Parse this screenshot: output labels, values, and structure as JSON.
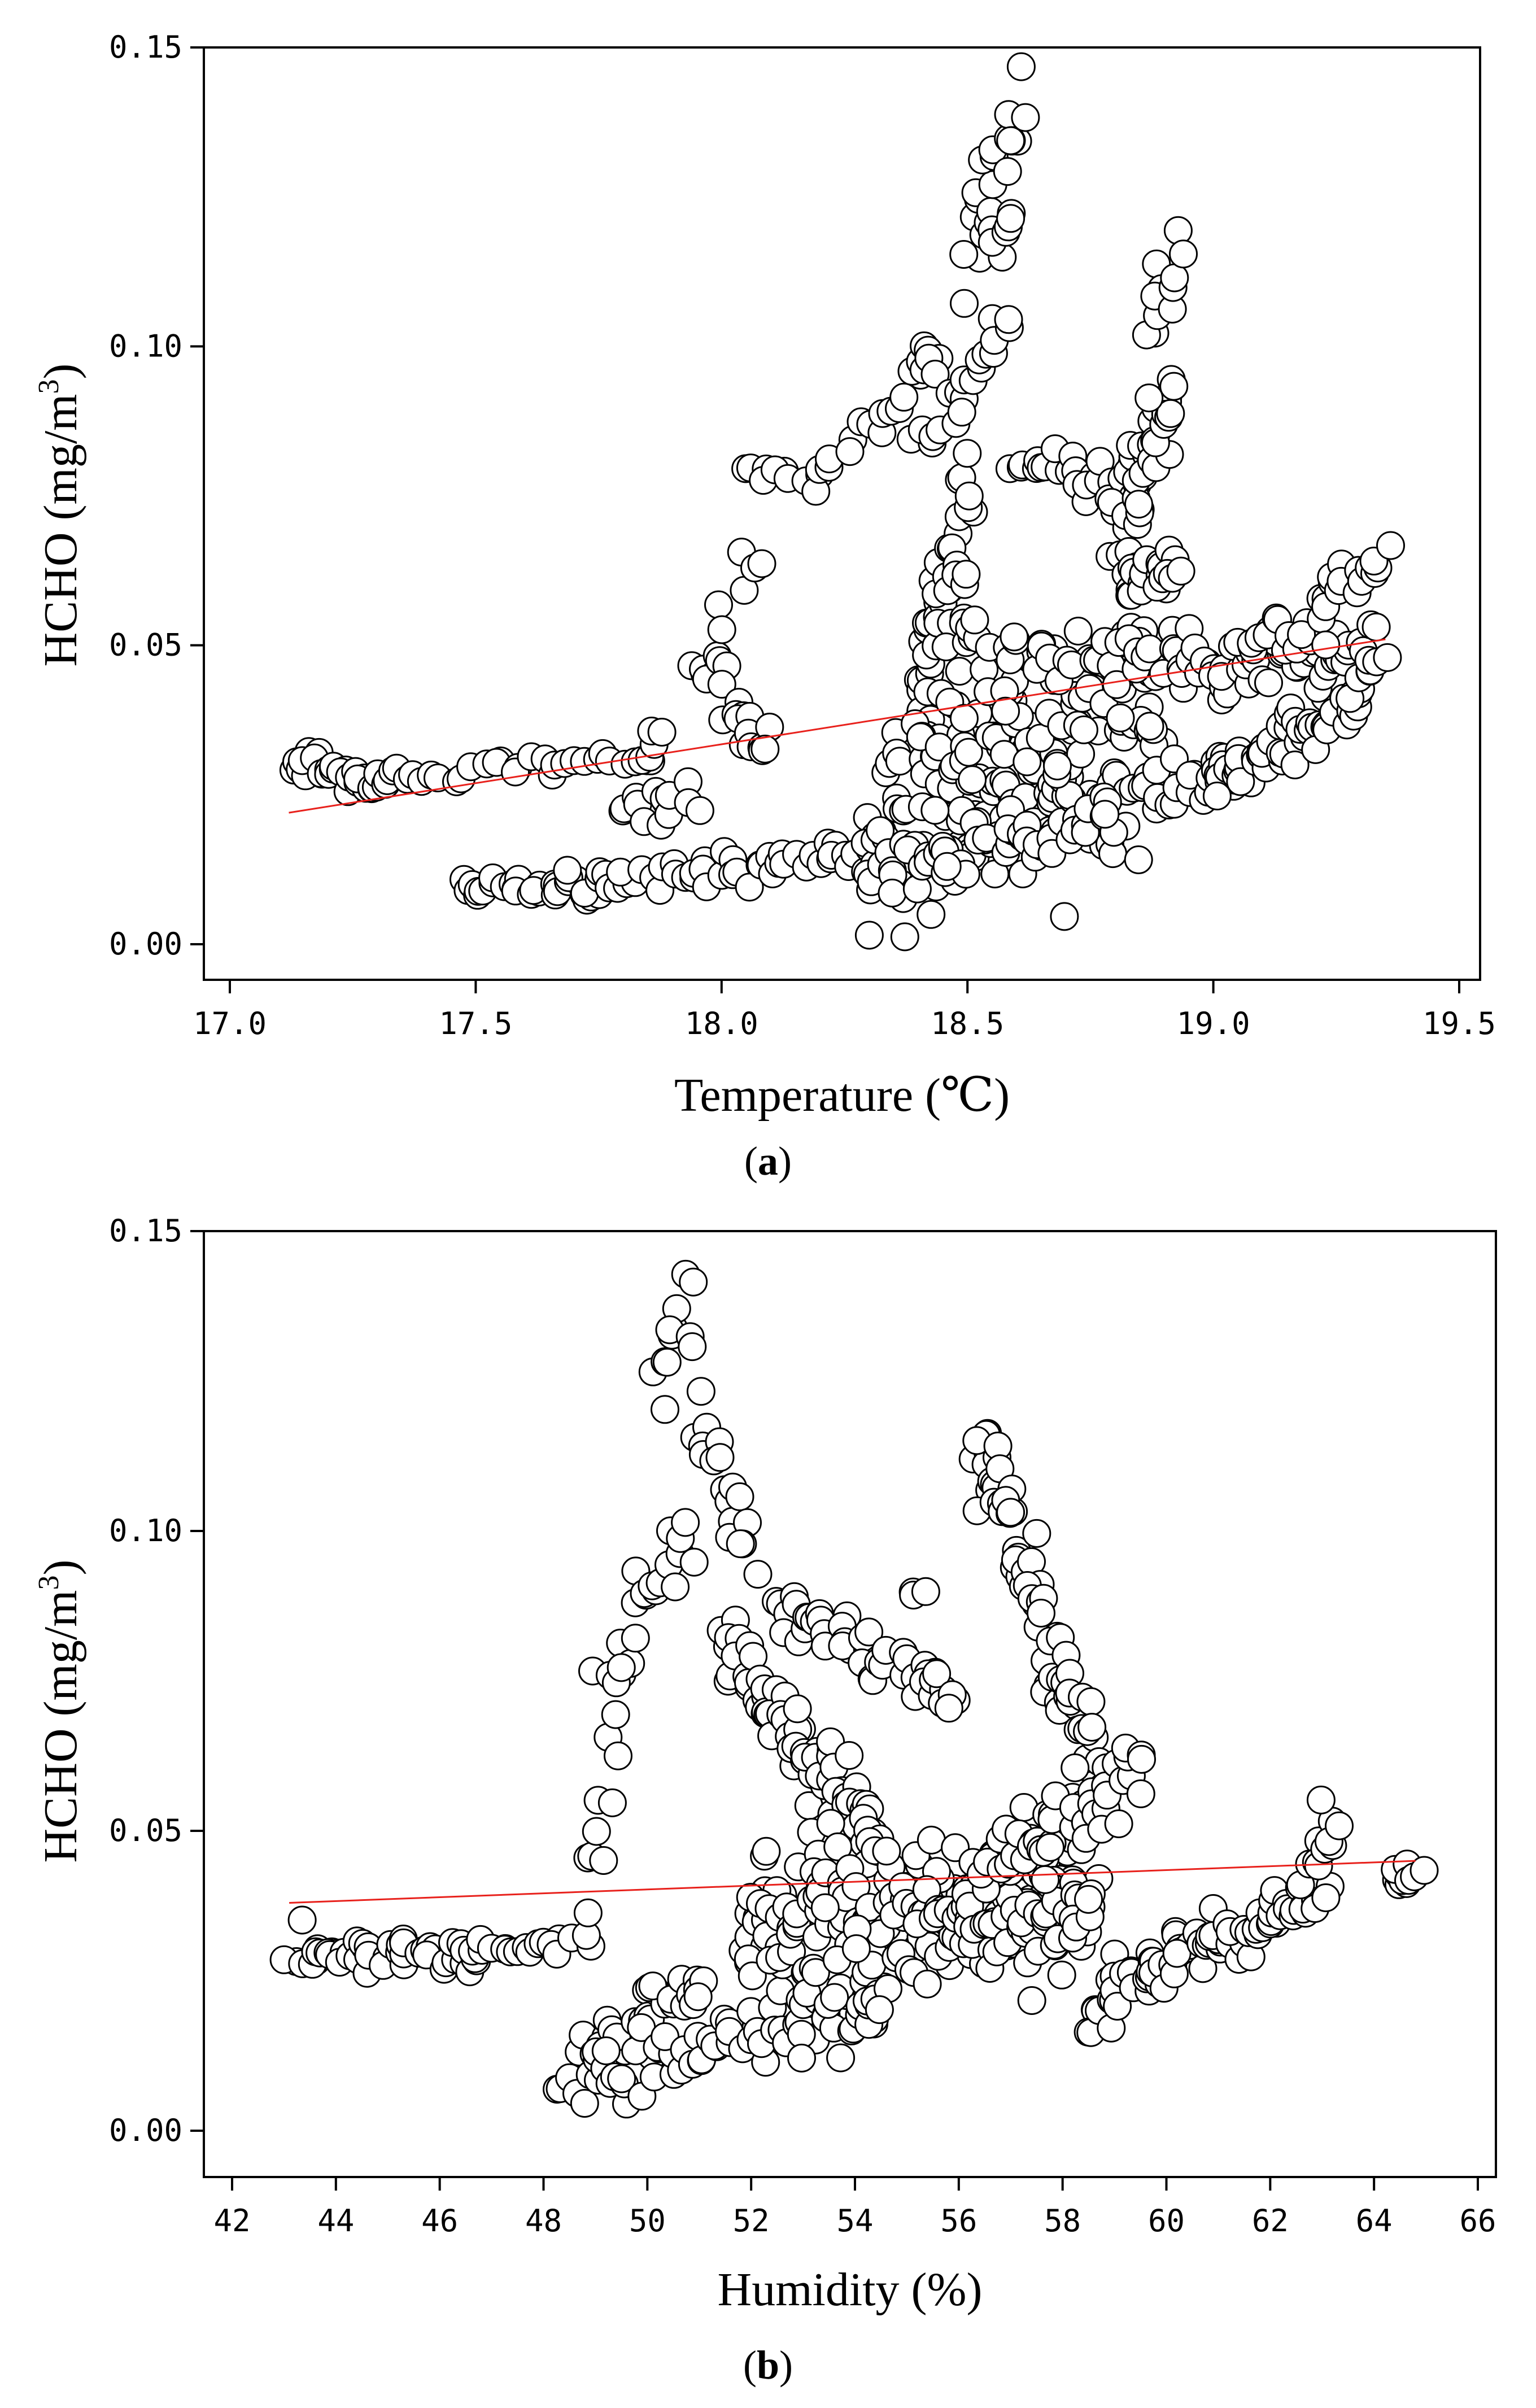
{
  "chart_data": [
    {
      "type": "scatter",
      "caption": "a",
      "xlabel": "Temperature (℃)",
      "ylabel_main": "HCHO (mg/m",
      "ylabel_sup": "3",
      "ylabel_close": ")",
      "xlim": [
        17.0,
        19.5
      ],
      "ylim": [
        0.0,
        0.15
      ],
      "xticks": [
        "17.0",
        "17.5",
        "18.0",
        "18.5",
        "19.0",
        "19.5"
      ],
      "xtick_values": [
        17.0,
        17.5,
        18.0,
        18.5,
        19.0,
        19.5
      ],
      "yticks": [
        "0.00",
        "0.05",
        "0.10",
        "0.15"
      ],
      "ytick_values": [
        0.0,
        0.05,
        0.1,
        0.15
      ],
      "marker": "open-circle",
      "trend_color": "#e8211c",
      "trendline": [
        [
          17.12,
          0.022
        ],
        [
          19.35,
          0.051
        ]
      ],
      "clusters": [
        {
          "from": [
            17.12,
            0.031
          ],
          "to": [
            17.32,
            0.026
          ],
          "n": 30,
          "spread": 0.0015
        },
        {
          "from": [
            17.32,
            0.028
          ],
          "to": [
            17.85,
            0.031
          ],
          "n": 28,
          "spread": 0.001
        },
        {
          "from": [
            17.47,
            0.01
          ],
          "to": [
            17.75,
            0.009
          ],
          "n": 28,
          "spread": 0.001
        },
        {
          "from": [
            17.7,
            0.01
          ],
          "to": [
            18.3,
            0.015
          ],
          "n": 50,
          "spread": 0.002
        },
        {
          "from": [
            17.8,
            0.022
          ],
          "to": [
            17.95,
            0.025
          ],
          "n": 14,
          "spread": 0.002
        },
        {
          "from": [
            17.85,
            0.03
          ],
          "to": [
            17.87,
            0.036
          ],
          "n": 6,
          "spread": 0.001
        },
        {
          "from": [
            17.95,
            0.048
          ],
          "to": [
            18.1,
            0.031
          ],
          "n": 22,
          "spread": 0.003
        },
        {
          "from": [
            18.0,
            0.06
          ],
          "to": [
            18.08,
            0.065
          ],
          "n": 6,
          "spread": 0.002
        },
        {
          "from": [
            18.05,
            0.08
          ],
          "to": [
            18.2,
            0.077
          ],
          "n": 10,
          "spread": 0.001
        },
        {
          "from": [
            18.2,
            0.078
          ],
          "to": [
            18.42,
            0.095
          ],
          "n": 14,
          "spread": 0.002
        },
        {
          "from": [
            18.38,
            0.095
          ],
          "to": [
            18.45,
            0.1
          ],
          "n": 8,
          "spread": 0.002
        },
        {
          "from": [
            18.4,
            0.084
          ],
          "to": [
            18.5,
            0.09
          ],
          "n": 10,
          "spread": 0.002
        },
        {
          "from": [
            18.5,
            0.095
          ],
          "to": [
            18.58,
            0.104
          ],
          "n": 10,
          "spread": 0.002
        },
        {
          "from": [
            18.5,
            0.113
          ],
          "to": [
            18.6,
            0.141
          ],
          "n": 24,
          "spread": 0.003
        },
        {
          "from": [
            18.56,
            0.117
          ],
          "to": [
            18.6,
            0.122
          ],
          "n": 6,
          "spread": 0.002
        },
        {
          "from": [
            18.4,
            0.042
          ],
          "to": [
            18.5,
            0.075
          ],
          "n": 36,
          "spread": 0.004
        },
        {
          "from": [
            18.45,
            0.06
          ],
          "to": [
            18.52,
            0.055
          ],
          "n": 16,
          "spread": 0.004
        },
        {
          "from": [
            18.6,
            0.081
          ],
          "to": [
            18.85,
            0.076
          ],
          "n": 24,
          "spread": 0.002
        },
        {
          "from": [
            18.8,
            0.07
          ],
          "to": [
            18.92,
            0.09
          ],
          "n": 40,
          "spread": 0.004
        },
        {
          "from": [
            18.86,
            0.1
          ],
          "to": [
            18.93,
            0.117
          ],
          "n": 12,
          "spread": 0.003
        },
        {
          "from": [
            18.82,
            0.06
          ],
          "to": [
            18.92,
            0.063
          ],
          "n": 24,
          "spread": 0.002
        },
        {
          "from": [
            18.3,
            0.02
          ],
          "to": [
            18.9,
            0.03
          ],
          "n": 140,
          "spread": 0.008
        },
        {
          "from": [
            18.3,
            0.013
          ],
          "to": [
            18.8,
            0.022
          ],
          "n": 60,
          "spread": 0.003
        },
        {
          "from": [
            18.4,
            0.035
          ],
          "to": [
            18.95,
            0.045
          ],
          "n": 70,
          "spread": 0.006
        },
        {
          "from": [
            18.55,
            0.048
          ],
          "to": [
            18.95,
            0.048
          ],
          "n": 30,
          "spread": 0.003
        },
        {
          "from": [
            18.85,
            0.026
          ],
          "to": [
            19.05,
            0.028
          ],
          "n": 20,
          "spread": 0.002
        },
        {
          "from": [
            19.0,
            0.028
          ],
          "to": [
            19.3,
            0.04
          ],
          "n": 60,
          "spread": 0.002
        },
        {
          "from": [
            18.95,
            0.045
          ],
          "to": [
            19.35,
            0.05
          ],
          "n": 60,
          "spread": 0.003
        },
        {
          "from": [
            19.05,
            0.05
          ],
          "to": [
            19.2,
            0.052
          ],
          "n": 14,
          "spread": 0.002
        },
        {
          "from": [
            19.2,
            0.055
          ],
          "to": [
            19.35,
            0.066
          ],
          "n": 20,
          "spread": 0.003
        }
      ]
    },
    {
      "type": "scatter",
      "caption": "b",
      "xlabel": "Humidity (%)",
      "ylabel_main": "HCHO (mg/m",
      "ylabel_sup": "3",
      "ylabel_close": ")",
      "xlim": [
        41,
        67
      ],
      "ylim": [
        0.0,
        0.15
      ],
      "xticks": [
        "42",
        "44",
        "46",
        "48",
        "50",
        "52",
        "54",
        "56",
        "58",
        "60",
        "62",
        "64",
        "66"
      ],
      "xtick_values": [
        42,
        44,
        46,
        48,
        50,
        52,
        54,
        56,
        58,
        60,
        62,
        64,
        66
      ],
      "yticks": [
        "0.00",
        "0.05",
        "0.10",
        "0.15"
      ],
      "ytick_values": [
        0.0,
        0.05,
        0.1,
        0.15
      ],
      "marker": "open-circle",
      "trend_color": "#e8211c",
      "trendline": [
        [
          43.1,
          0.038
        ],
        [
          64.8,
          0.045
        ]
      ],
      "clusters": [
        {
          "from": [
            43.1,
            0.03
          ],
          "to": [
            46.8,
            0.029
          ],
          "n": 48,
          "spread": 0.0015
        },
        {
          "from": [
            46.8,
            0.031
          ],
          "to": [
            48.8,
            0.031
          ],
          "n": 18,
          "spread": 0.001
        },
        {
          "from": [
            48.4,
            0.008
          ],
          "to": [
            51.0,
            0.025
          ],
          "n": 45,
          "spread": 0.003
        },
        {
          "from": [
            49.2,
            0.009
          ],
          "to": [
            54.5,
            0.022
          ],
          "n": 60,
          "spread": 0.003
        },
        {
          "from": [
            48.8,
            0.04
          ],
          "to": [
            49.5,
            0.065
          ],
          "n": 10,
          "spread": 0.004
        },
        {
          "from": [
            49.2,
            0.077
          ],
          "to": [
            49.7,
            0.08
          ],
          "n": 8,
          "spread": 0.002
        },
        {
          "from": [
            49.8,
            0.09
          ],
          "to": [
            50.8,
            0.097
          ],
          "n": 14,
          "spread": 0.003
        },
        {
          "from": [
            50.2,
            0.122
          ],
          "to": [
            51.0,
            0.141
          ],
          "n": 12,
          "spread": 0.004
        },
        {
          "from": [
            51.0,
            0.12
          ],
          "to": [
            52.0,
            0.095
          ],
          "n": 18,
          "spread": 0.002
        },
        {
          "from": [
            51.5,
            0.082
          ],
          "to": [
            54.5,
            0.048
          ],
          "n": 80,
          "spread": 0.003
        },
        {
          "from": [
            52.5,
            0.088
          ],
          "to": [
            56.0,
            0.072
          ],
          "n": 50,
          "spread": 0.002
        },
        {
          "from": [
            55.0,
            0.09
          ],
          "to": [
            55.3,
            0.09
          ],
          "n": 3,
          "spread": 0.001
        },
        {
          "from": [
            56.4,
            0.117
          ],
          "to": [
            58.6,
            0.061
          ],
          "n": 70,
          "spread": 0.003
        },
        {
          "from": [
            51.8,
            0.03
          ],
          "to": [
            52.5,
            0.04
          ],
          "n": 14,
          "spread": 0.004
        },
        {
          "from": [
            52.0,
            0.035
          ],
          "to": [
            58.5,
            0.04
          ],
          "n": 160,
          "spread": 0.006
        },
        {
          "from": [
            53.0,
            0.022
          ],
          "to": [
            58.5,
            0.045
          ],
          "n": 60,
          "spread": 0.006
        },
        {
          "from": [
            55.0,
            0.036
          ],
          "to": [
            58.5,
            0.034
          ],
          "n": 60,
          "spread": 0.003
        },
        {
          "from": [
            56.5,
            0.043
          ],
          "to": [
            59.5,
            0.06
          ],
          "n": 50,
          "spread": 0.003
        },
        {
          "from": [
            58.5,
            0.02
          ],
          "to": [
            59.5,
            0.028
          ],
          "n": 20,
          "spread": 0.003
        },
        {
          "from": [
            59.5,
            0.026
          ],
          "to": [
            63.0,
            0.04
          ],
          "n": 70,
          "spread": 0.002
        },
        {
          "from": [
            62.8,
            0.04
          ],
          "to": [
            63.2,
            0.054
          ],
          "n": 14,
          "spread": 0.003
        },
        {
          "from": [
            64.3,
            0.042
          ],
          "to": [
            64.8,
            0.043
          ],
          "n": 12,
          "spread": 0.001
        }
      ]
    }
  ]
}
